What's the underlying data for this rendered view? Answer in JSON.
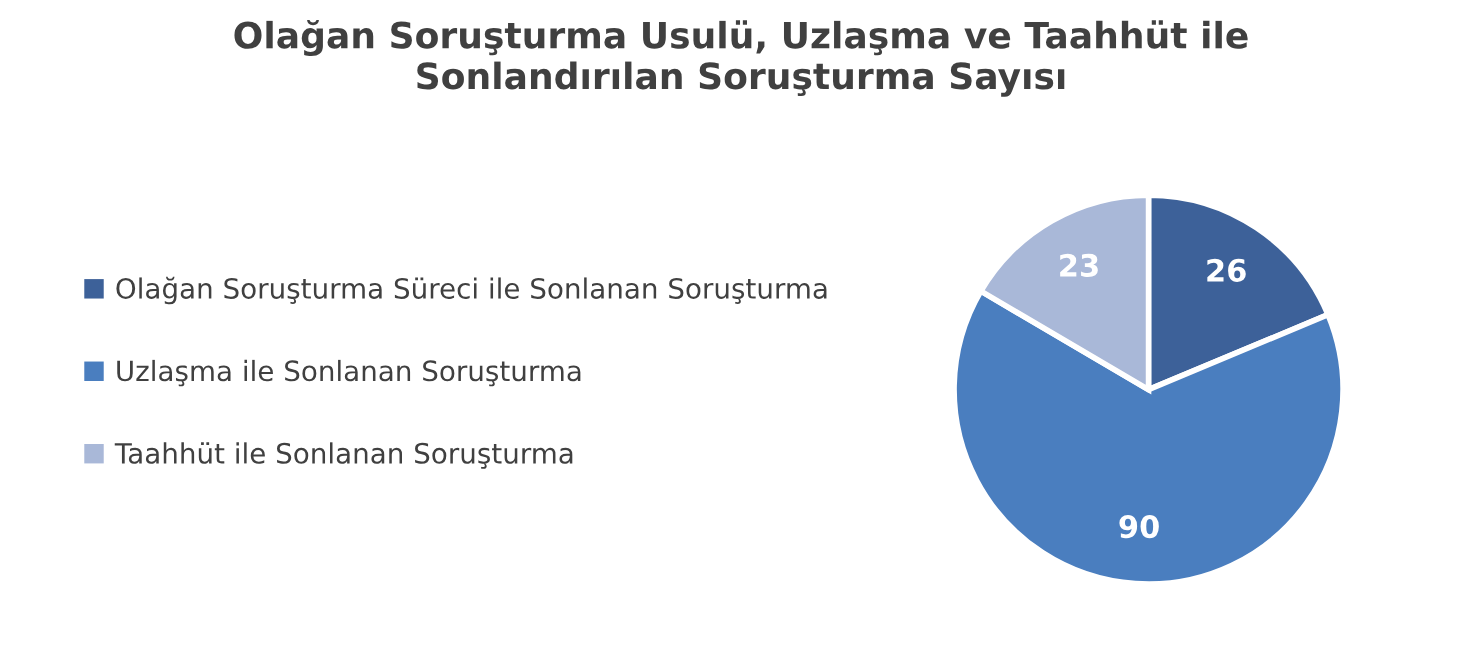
{
  "chart_data": {
    "type": "pie",
    "title": "Olağan Soruşturma Usulü, Uzlaşma ve Taahhüt ile\nSonlandırılan Soruşturma Sayısı",
    "categories": [
      "Olağan Soruşturma Süreci ile Sonlanan Soruşturma",
      "Uzlaşma ile Sonlanan Soruşturma",
      "Taahhüt ile Sonlanan Soruşturma"
    ],
    "values": [
      26,
      90,
      23
    ],
    "colors": [
      "#3d6199",
      "#4a7ebf",
      "#a9b8d8"
    ],
    "data_labels": true,
    "legend": "left"
  }
}
